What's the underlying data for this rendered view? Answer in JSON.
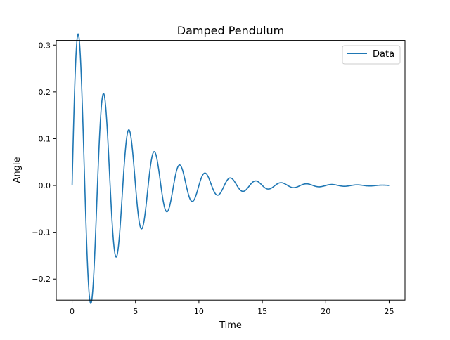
{
  "chart_data": {
    "type": "line",
    "title": "Damped Pendulum",
    "xlabel": "Time",
    "ylabel": "Angle",
    "xlim": [
      -1.25,
      26.25
    ],
    "ylim": [
      -0.245,
      0.31
    ],
    "xticks": [
      0,
      5,
      10,
      15,
      20,
      25
    ],
    "xtick_labels": [
      "0",
      "5",
      "10",
      "15",
      "20",
      "25"
    ],
    "yticks": [
      -0.2,
      -0.1,
      0.0,
      0.1,
      0.2,
      0.3
    ],
    "ytick_labels": [
      "−0.2",
      "−0.1",
      "0.0",
      "0.1",
      "0.2",
      "0.3"
    ],
    "grid": false,
    "legend_position": "upper right",
    "series": [
      {
        "name": "Data",
        "color": "#1f77b4",
        "model": {
          "form": "A*exp(-b*t)*sin(w*t)",
          "A": 0.366,
          "b": 0.25,
          "w": 3.1416,
          "t_start": 0,
          "t_end": 25,
          "samples": 1001
        }
      }
    ]
  }
}
